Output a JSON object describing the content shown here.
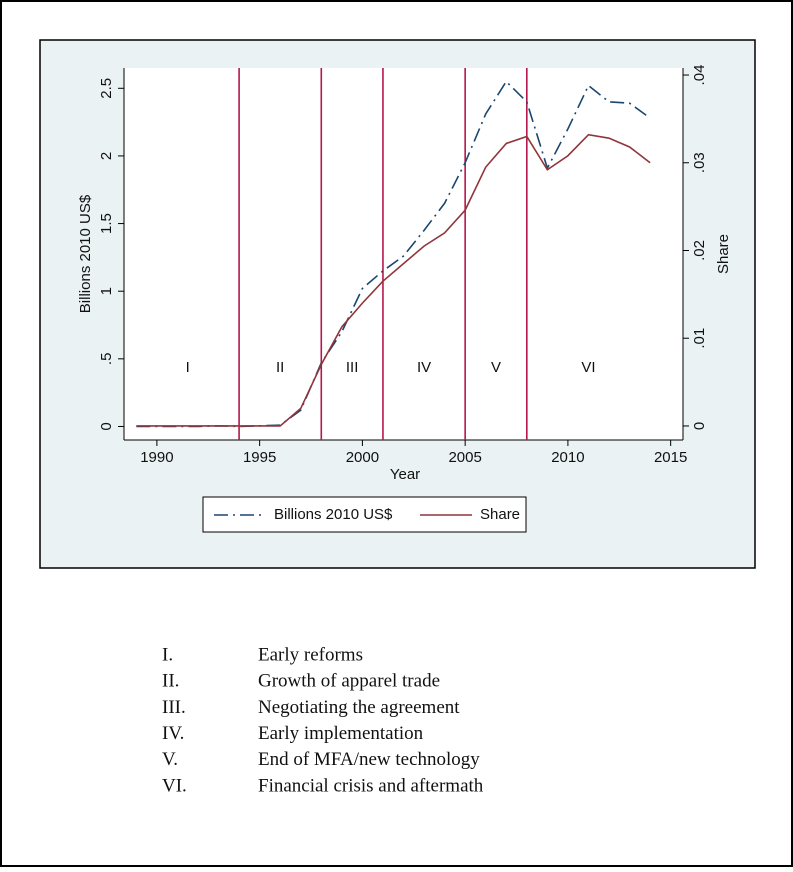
{
  "chart_data": {
    "type": "line",
    "x": [
      1989,
      1990,
      1991,
      1992,
      1993,
      1994,
      1995,
      1996,
      1997,
      1998,
      1999,
      2000,
      2001,
      2002,
      2003,
      2004,
      2005,
      2006,
      2007,
      2008,
      2009,
      2010,
      2011,
      2012,
      2013,
      2014
    ],
    "series": [
      {
        "name": "Billions 2010 US$",
        "color": "#1a476f",
        "axis": "y",
        "values": [
          0,
          0,
          0,
          0,
          0.005,
          0,
          0.005,
          0.01,
          0.12,
          0.47,
          0.7,
          1.02,
          1.15,
          1.26,
          1.45,
          1.65,
          1.95,
          2.31,
          2.55,
          2.4,
          1.91,
          2.2,
          2.52,
          2.4,
          2.39,
          2.28
        ]
      },
      {
        "name": "Share",
        "color": "#90353b",
        "axis": "y2",
        "values": [
          0,
          0,
          0,
          0,
          0,
          0,
          0,
          0,
          0.002,
          0.007,
          0.0113,
          0.014,
          0.0165,
          0.0185,
          0.0205,
          0.022,
          0.0246,
          0.0295,
          0.0322,
          0.033,
          0.0292,
          0.0308,
          0.0332,
          0.0328,
          0.0318,
          0.03
        ]
      }
    ],
    "xlabel": "Year",
    "ylabel": "Billions 2010 US$",
    "y2label": "Share",
    "xlim": [
      1988.4,
      2015.6
    ],
    "xticks": [
      1990,
      1995,
      2000,
      2005,
      2010,
      2015
    ],
    "ylim": [
      -0.1,
      2.65
    ],
    "yticks": [
      0,
      {
        "value": 0.5,
        "label": ".5"
      },
      1,
      1.5,
      2,
      2.5
    ],
    "y2lim": [
      -0.0016,
      0.0408
    ],
    "y2ticks": [
      0,
      {
        "value": 0.01,
        "label": ".01"
      },
      {
        "value": 0.02,
        "label": ".02"
      },
      {
        "value": 0.03,
        "label": ".03"
      },
      {
        "value": 0.04,
        "label": ".04"
      }
    ],
    "vlines": [
      1994,
      1998,
      2001,
      2005,
      2008
    ],
    "vline_color": "#b5174a",
    "period_labels": [
      "I",
      "II",
      "III",
      "IV",
      "V",
      "VI"
    ],
    "legend": "bottom"
  },
  "phases": [
    {
      "numeral": "I.",
      "label": "Early reforms"
    },
    {
      "numeral": "II.",
      "label": "Growth of apparel trade"
    },
    {
      "numeral": "III.",
      "label": "Negotiating the agreement"
    },
    {
      "numeral": "IV.",
      "label": "Early implementation"
    },
    {
      "numeral": "V.",
      "label": "End of MFA/new technology"
    },
    {
      "numeral": "VI.",
      "label": "Financial crisis and aftermath"
    }
  ]
}
